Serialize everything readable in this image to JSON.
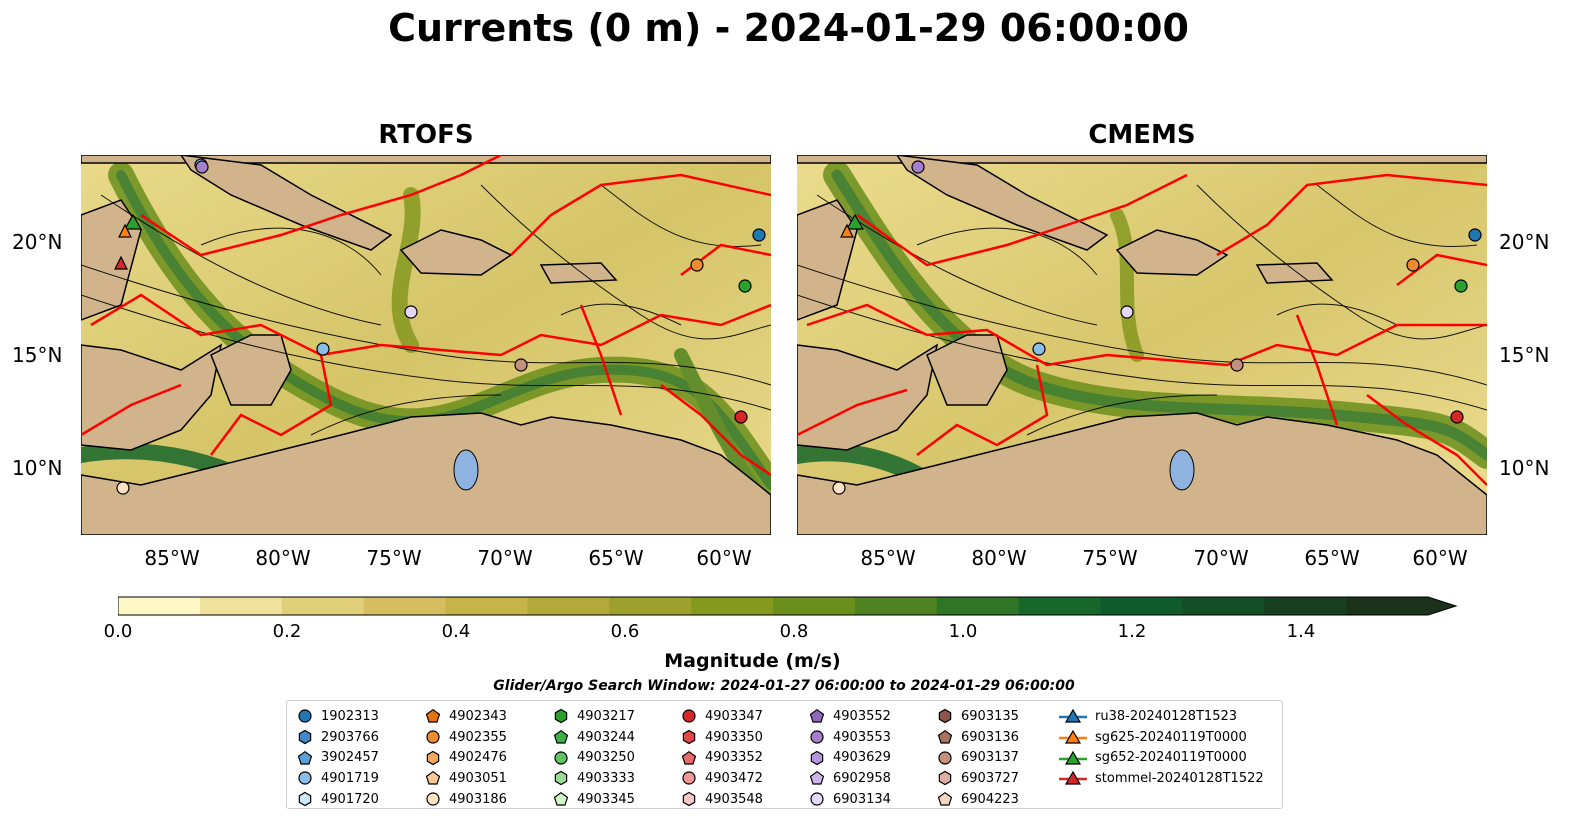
{
  "title": "Currents (0 m) - 2024-01-29 06:00:00",
  "panels": [
    {
      "title": "RTOFS"
    },
    {
      "title": "CMEMS"
    }
  ],
  "lat_labels": [
    "20°N",
    "15°N",
    "10°N"
  ],
  "lon_labels": [
    "85°W",
    "80°W",
    "75°W",
    "70°W",
    "65°W",
    "60°W"
  ],
  "colorbar": {
    "label": "Magnitude (m/s)",
    "ticks": [
      "0.0",
      "0.2",
      "0.4",
      "0.6",
      "0.8",
      "1.0",
      "1.2",
      "1.4"
    ],
    "range": [
      0,
      1.5
    ],
    "extend": "max",
    "colors": [
      "#fdf8c5",
      "#efe29c",
      "#e2cf7a",
      "#d6bd5f",
      "#c6b34a",
      "#b2a93a",
      "#9ea02e",
      "#85991f",
      "#6b8f1c",
      "#4f8220",
      "#2f7526",
      "#17672b",
      "#0f5b2c",
      "#144e26",
      "#183f1f",
      "#1a311a"
    ]
  },
  "search_window": "Glider/Argo Search Window: 2024-01-27 06:00:00 to 2024-01-29 06:00:00",
  "map_colors": {
    "land": "#d2b48c",
    "lake": "#8fb3e0",
    "fronts": "#ff0000"
  },
  "legend": [
    [
      {
        "label": "1902313",
        "marker": "circle",
        "color": "#1f77b4"
      },
      {
        "label": "2903766",
        "marker": "hexagon",
        "color": "#3f88c5"
      },
      {
        "label": "3902457",
        "marker": "pentagon",
        "color": "#5a9fd6"
      },
      {
        "label": "4901719",
        "marker": "circle",
        "color": "#8bbde8"
      },
      {
        "label": "4901720",
        "marker": "hexagon",
        "color": "#cfe6f7"
      }
    ],
    [
      {
        "label": "4902343",
        "marker": "pentagon",
        "color": "#e8720c"
      },
      {
        "label": "4902355",
        "marker": "circle",
        "color": "#f08c30"
      },
      {
        "label": "4902476",
        "marker": "hexagon",
        "color": "#f5a85c"
      },
      {
        "label": "4903051",
        "marker": "pentagon",
        "color": "#f8c896"
      },
      {
        "label": "4903186",
        "marker": "circle",
        "color": "#fde2c4"
      }
    ],
    [
      {
        "label": "4903217",
        "marker": "hexagon",
        "color": "#2ca02c"
      },
      {
        "label": "4903244",
        "marker": "pentagon",
        "color": "#3cb043"
      },
      {
        "label": "4903250",
        "marker": "circle",
        "color": "#62c462"
      },
      {
        "label": "4903333",
        "marker": "hexagon",
        "color": "#98dc98"
      },
      {
        "label": "4903345",
        "marker": "pentagon",
        "color": "#d2f5c8"
      }
    ],
    [
      {
        "label": "4903347",
        "marker": "circle",
        "color": "#d62728"
      },
      {
        "label": "4903350",
        "marker": "hexagon",
        "color": "#e04848"
      },
      {
        "label": "4903352",
        "marker": "pentagon",
        "color": "#e86a6a"
      },
      {
        "label": "4903472",
        "marker": "circle",
        "color": "#f29797"
      },
      {
        "label": "4903548",
        "marker": "hexagon",
        "color": "#f9c6c6"
      }
    ],
    [
      {
        "label": "4903552",
        "marker": "pentagon",
        "color": "#9467bd"
      },
      {
        "label": "4903553",
        "marker": "circle",
        "color": "#a57fcc"
      },
      {
        "label": "4903629",
        "marker": "hexagon",
        "color": "#b795dc"
      },
      {
        "label": "6902958",
        "marker": "pentagon",
        "color": "#cdb5ea"
      },
      {
        "label": "6903134",
        "marker": "circle",
        "color": "#e6d7f8"
      }
    ],
    [
      {
        "label": "6903135",
        "marker": "hexagon",
        "color": "#8c564b"
      },
      {
        "label": "6903136",
        "marker": "pentagon",
        "color": "#a8725f"
      },
      {
        "label": "6903137",
        "marker": "circle",
        "color": "#c4917f"
      },
      {
        "label": "6903727",
        "marker": "hexagon",
        "color": "#ddb0a3"
      },
      {
        "label": "6904223",
        "marker": "pentagon",
        "color": "#f5d4c8"
      }
    ],
    [
      {
        "label": "ru38-20240128T1523",
        "marker": "triangle",
        "color": "#1f77b4"
      },
      {
        "label": "sg625-20240119T0000",
        "marker": "triangle",
        "color": "#ff7f0e"
      },
      {
        "label": "sg652-20240119T0000",
        "marker": "triangle",
        "color": "#2ca02c"
      },
      {
        "label": "stommel-20240128T1522",
        "marker": "triangle",
        "color": "#d62728"
      }
    ]
  ]
}
